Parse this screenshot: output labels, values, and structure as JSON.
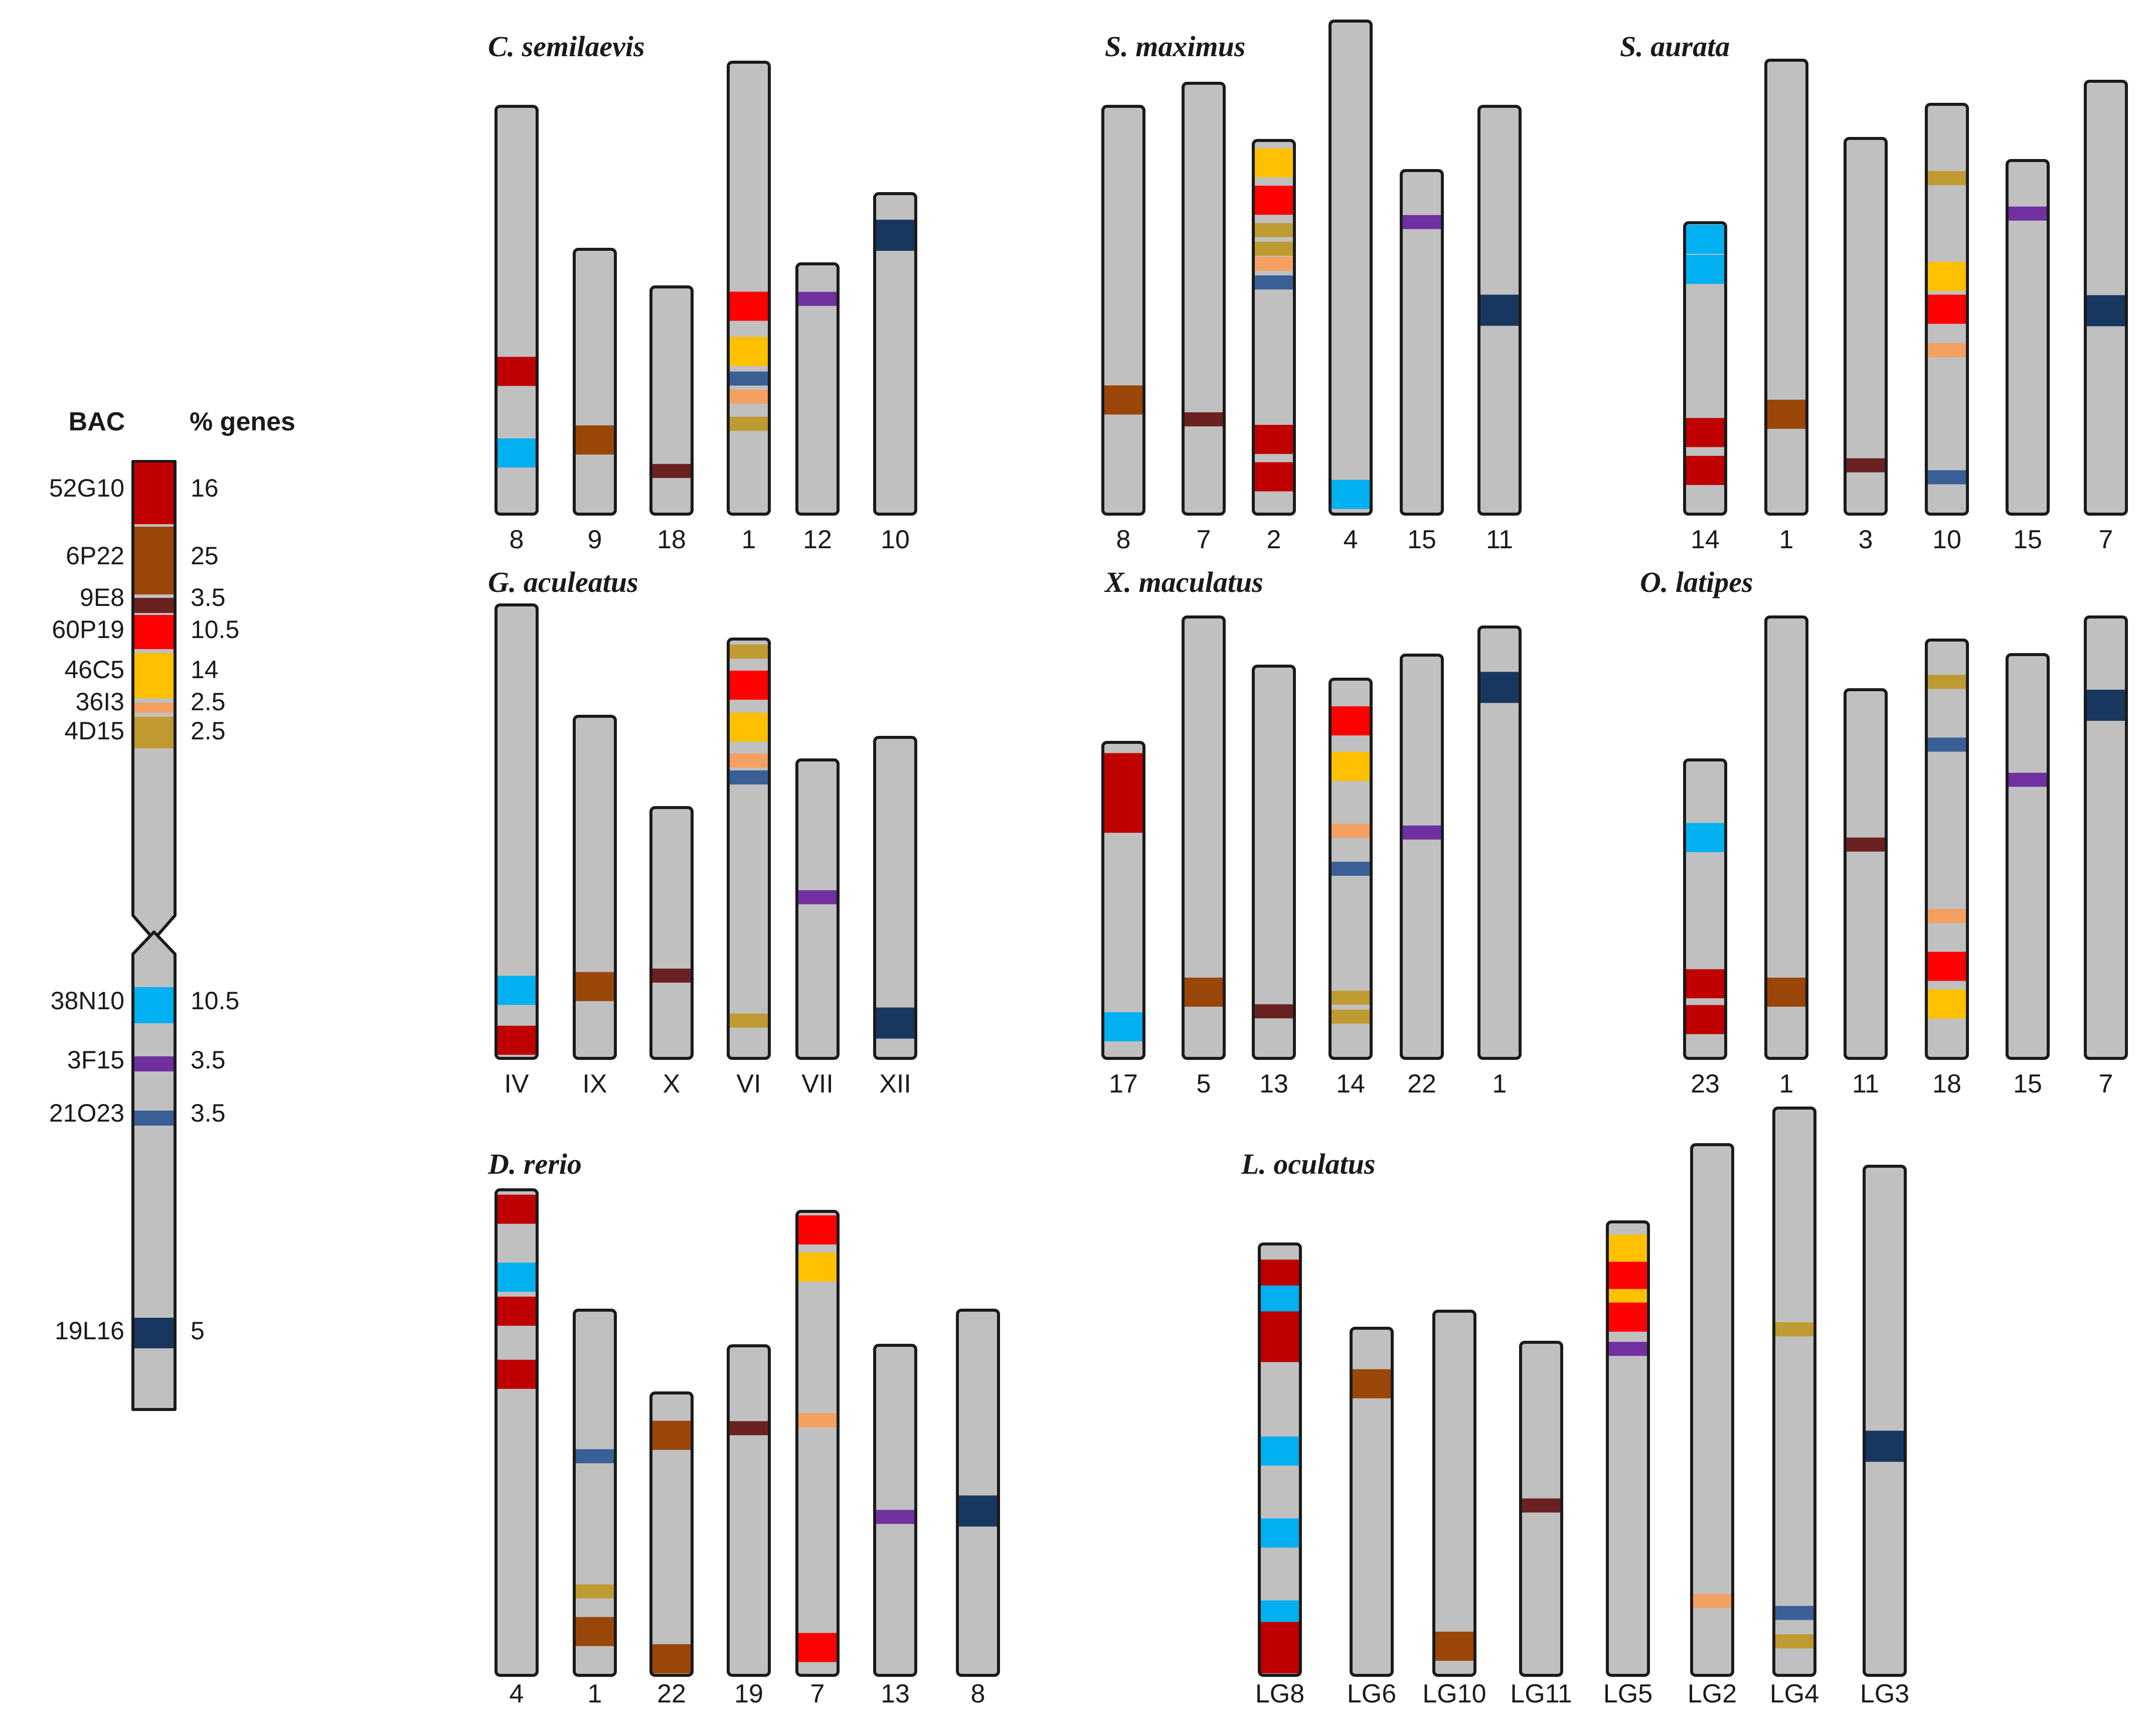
{
  "colors": {
    "chromosome_fill": "#c0c0c0",
    "chromosome_stroke": "#1a1a1a",
    "52G10": "#c00000",
    "6P22": "#9a4609",
    "9E8": "#6b2121",
    "60P19": "#ff0000",
    "46C5": "#ffc000",
    "36I3": "#f4a060",
    "4D15": "#bf9a30",
    "38N10": "#00b0f0",
    "3F15": "#7030a0",
    "21O23": "#3a5f96",
    "19L16": "#17375e"
  },
  "legend": {
    "col_bac": "BAC",
    "col_genes": "% genes",
    "items": [
      {
        "bac": "52G10",
        "genes": "16",
        "color": "#c00000"
      },
      {
        "bac": "6P22",
        "genes": "25",
        "color": "#9a4609"
      },
      {
        "bac": "9E8",
        "genes": "3.5",
        "color": "#6b2121"
      },
      {
        "bac": "60P19",
        "genes": "10.5",
        "color": "#ff0000"
      },
      {
        "bac": "46C5",
        "genes": "14",
        "color": "#ffc000"
      },
      {
        "bac": "36I3",
        "genes": "2.5",
        "color": "#f4a060"
      },
      {
        "bac": "4D15",
        "genes": "2.5",
        "color": "#bf9a30"
      },
      {
        "bac": "38N10",
        "genes": "10.5",
        "color": "#00b0f0"
      },
      {
        "bac": "3F15",
        "genes": "3.5",
        "color": "#7030a0"
      },
      {
        "bac": "21O23",
        "genes": "3.5",
        "color": "#3a5f96"
      },
      {
        "bac": "19L16",
        "genes": "5",
        "color": "#17375e"
      }
    ]
  },
  "species": [
    {
      "name": "C. semilaevis",
      "chromosomes": [
        {
          "label": "8",
          "bands": [
            {
              "bac": "52G10",
              "pos": 0.65
            },
            {
              "bac": "38N10",
              "pos": 0.85
            }
          ]
        },
        {
          "label": "9",
          "bands": [
            {
              "bac": "6P22",
              "pos": 0.72
            }
          ]
        },
        {
          "label": "18",
          "bands": [
            {
              "bac": "9E8",
              "pos": 0.81
            }
          ]
        },
        {
          "label": "1",
          "bands": [
            {
              "bac": "60P19",
              "pos": 0.54
            },
            {
              "bac": "46C5",
              "pos": 0.64
            },
            {
              "bac": "21O23",
              "pos": 0.7
            },
            {
              "bac": "36I3",
              "pos": 0.74
            },
            {
              "bac": "4D15",
              "pos": 0.8
            }
          ]
        },
        {
          "label": "12",
          "bands": [
            {
              "bac": "3F15",
              "pos": 0.14
            }
          ]
        },
        {
          "label": "10",
          "bands": [
            {
              "bac": "19L16",
              "pos": 0.13
            }
          ]
        }
      ]
    },
    {
      "name": "S. maximus",
      "chromosomes": [
        {
          "label": "8",
          "bands": [
            {
              "bac": "6P22",
              "pos": 0.72
            }
          ]
        },
        {
          "label": "7",
          "bands": [
            {
              "bac": "9E8",
              "pos": 0.78
            }
          ]
        },
        {
          "label": "2",
          "bands": [
            {
              "bac": "46C5",
              "pos": 0.06
            },
            {
              "bac": "60P19",
              "pos": 0.16
            },
            {
              "bac": "4D15",
              "pos": 0.24
            },
            {
              "bac": "4D15",
              "pos": 0.29
            },
            {
              "bac": "36I3",
              "pos": 0.33
            },
            {
              "bac": "21O23",
              "pos": 0.38
            },
            {
              "bac": "52G10",
              "pos": 0.8
            },
            {
              "bac": "52G10",
              "pos": 0.9
            }
          ]
        },
        {
          "label": "4",
          "bands": [
            {
              "bac": "38N10",
              "pos": 0.96
            }
          ]
        },
        {
          "label": "15",
          "bands": [
            {
              "bac": "3F15",
              "pos": 0.15
            }
          ]
        },
        {
          "label": "11",
          "bands": [
            {
              "bac": "19L16",
              "pos": 0.5
            }
          ]
        }
      ]
    },
    {
      "name": "S. aurata",
      "chromosomes": [
        {
          "label": "14",
          "bands": [
            {
              "bac": "38N10",
              "pos": 0.03
            },
            {
              "bac": "38N10",
              "pos": 0.16
            },
            {
              "bac": "52G10",
              "pos": 0.72
            },
            {
              "bac": "52G10",
              "pos": 0.85
            }
          ]
        },
        {
          "label": "1",
          "bands": [
            {
              "bac": "6P22",
              "pos": 0.78
            }
          ]
        },
        {
          "label": "3",
          "bands": [
            {
              "bac": "9E8",
              "pos": 0.87
            }
          ]
        },
        {
          "label": "10",
          "bands": [
            {
              "bac": "4D15",
              "pos": 0.18
            },
            {
              "bac": "46C5",
              "pos": 0.42
            },
            {
              "bac": "60P19",
              "pos": 0.5
            },
            {
              "bac": "36I3",
              "pos": 0.6
            },
            {
              "bac": "21O23",
              "pos": 0.91
            }
          ]
        },
        {
          "label": "15",
          "bands": [
            {
              "bac": "3F15",
              "pos": 0.15
            }
          ]
        },
        {
          "label": "7",
          "bands": [
            {
              "bac": "19L16",
              "pos": 0.53
            }
          ]
        }
      ]
    },
    {
      "name": "G. aculeatus",
      "chromosomes": [
        {
          "label": "IV",
          "bands": [
            {
              "bac": "38N10",
              "pos": 0.85
            },
            {
              "bac": "52G10",
              "pos": 0.96
            }
          ]
        },
        {
          "label": "IX",
          "bands": [
            {
              "bac": "6P22",
              "pos": 0.79
            }
          ]
        },
        {
          "label": "X",
          "bands": [
            {
              "bac": "9E8",
              "pos": 0.67
            }
          ]
        },
        {
          "label": "VI",
          "bands": [
            {
              "bac": "4D15",
              "pos": 0.03
            },
            {
              "bac": "60P19",
              "pos": 0.11
            },
            {
              "bac": "46C5",
              "pos": 0.21
            },
            {
              "bac": "36I3",
              "pos": 0.29
            },
            {
              "bac": "21O23",
              "pos": 0.33
            },
            {
              "bac": "4D15",
              "pos": 0.91
            }
          ]
        },
        {
          "label": "VII",
          "bands": [
            {
              "bac": "3F15",
              "pos": 0.46
            }
          ]
        },
        {
          "label": "XII",
          "bands": [
            {
              "bac": "19L16",
              "pos": 0.89
            }
          ]
        }
      ]
    },
    {
      "name": "X. maculatus",
      "chromosomes": [
        {
          "label": "17",
          "bands": [
            {
              "bac": "52G10",
              "pos": 0.08
            },
            {
              "bac": "52G10",
              "pos": 0.14
            },
            {
              "bac": "52G10",
              "pos": 0.19
            },
            {
              "bac": "52G10",
              "pos": 0.24
            },
            {
              "bac": "38N10",
              "pos": 0.9
            }
          ]
        },
        {
          "label": "5",
          "bands": [
            {
              "bac": "6P22",
              "pos": 0.85
            }
          ]
        },
        {
          "label": "13",
          "bands": [
            {
              "bac": "9E8",
              "pos": 0.88
            }
          ]
        },
        {
          "label": "14",
          "bands": [
            {
              "bac": "60P19",
              "pos": 0.11
            },
            {
              "bac": "46C5",
              "pos": 0.23
            },
            {
              "bac": "36I3",
              "pos": 0.4
            },
            {
              "bac": "21O23",
              "pos": 0.5
            },
            {
              "bac": "4D15",
              "pos": 0.84
            },
            {
              "bac": "4D15",
              "pos": 0.89
            }
          ]
        },
        {
          "label": "22",
          "bands": [
            {
              "bac": "3F15",
              "pos": 0.44
            }
          ]
        },
        {
          "label": "1",
          "bands": [
            {
              "bac": "19L16",
              "pos": 0.14
            }
          ]
        }
      ]
    },
    {
      "name": "O. latipes",
      "chromosomes": [
        {
          "label": "23",
          "bands": [
            {
              "bac": "38N10",
              "pos": 0.26
            },
            {
              "bac": "52G10",
              "pos": 0.75
            },
            {
              "bac": "52G10",
              "pos": 0.87
            }
          ]
        },
        {
          "label": "1",
          "bands": [
            {
              "bac": "6P22",
              "pos": 0.85
            }
          ]
        },
        {
          "label": "11",
          "bands": [
            {
              "bac": "9E8",
              "pos": 0.42
            }
          ]
        },
        {
          "label": "18",
          "bands": [
            {
              "bac": "4D15",
              "pos": 0.1
            },
            {
              "bac": "21O23",
              "pos": 0.25
            },
            {
              "bac": "36I3",
              "pos": 0.66
            },
            {
              "bac": "60P19",
              "pos": 0.78
            },
            {
              "bac": "46C5",
              "pos": 0.87
            }
          ]
        },
        {
          "label": "15",
          "bands": [
            {
              "bac": "3F15",
              "pos": 0.31
            }
          ]
        },
        {
          "label": "7",
          "bands": [
            {
              "bac": "19L16",
              "pos": 0.2
            }
          ]
        }
      ]
    },
    {
      "name": "D. rerio",
      "chromosomes": [
        {
          "label": "4",
          "bands": [
            {
              "bac": "52G10",
              "pos": 0.04
            },
            {
              "bac": "38N10",
              "pos": 0.18
            },
            {
              "bac": "52G10",
              "pos": 0.25
            },
            {
              "bac": "52G10",
              "pos": 0.38
            }
          ]
        },
        {
          "label": "1",
          "bands": [
            {
              "bac": "21O23",
              "pos": 0.4
            },
            {
              "bac": "4D15",
              "pos": 0.77
            },
            {
              "bac": "6P22",
              "pos": 0.88
            }
          ]
        },
        {
          "label": "22",
          "bands": [
            {
              "bac": "6P22",
              "pos": 0.15
            },
            {
              "bac": "6P22",
              "pos": 0.95
            }
          ]
        },
        {
          "label": "19",
          "bands": [
            {
              "bac": "9E8",
              "pos": 0.25
            }
          ]
        },
        {
          "label": "7",
          "bands": [
            {
              "bac": "60P19",
              "pos": 0.04
            },
            {
              "bac": "46C5",
              "pos": 0.12
            },
            {
              "bac": "36I3",
              "pos": 0.45
            },
            {
              "bac": "60P19",
              "pos": 0.94
            }
          ]
        },
        {
          "label": "13",
          "bands": [
            {
              "bac": "3F15",
              "pos": 0.52
            }
          ]
        },
        {
          "label": "8",
          "bands": [
            {
              "bac": "19L16",
              "pos": 0.55
            }
          ]
        }
      ]
    },
    {
      "name": "L. oculatus",
      "chromosomes": [
        {
          "label": "LG8",
          "bands": [
            {
              "bac": "52G10",
              "pos": 0.07
            },
            {
              "bac": "38N10",
              "pos": 0.13
            },
            {
              "bac": "52G10",
              "pos": 0.19
            },
            {
              "bac": "52G10",
              "pos": 0.24
            },
            {
              "bac": "38N10",
              "pos": 0.48
            },
            {
              "bac": "38N10",
              "pos": 0.67
            },
            {
              "bac": "38N10",
              "pos": 0.86
            },
            {
              "bac": "52G10",
              "pos": 0.91
            },
            {
              "bac": "52G10",
              "pos": 0.97
            }
          ]
        },
        {
          "label": "LG6",
          "bands": [
            {
              "bac": "6P22",
              "pos": 0.16
            }
          ]
        },
        {
          "label": "LG10",
          "bands": [
            {
              "bac": "6P22",
              "pos": 0.92
            }
          ]
        },
        {
          "label": "LG11",
          "bands": [
            {
              "bac": "9E8",
              "pos": 0.49
            }
          ]
        },
        {
          "label": "LG5",
          "bands": [
            {
              "bac": "46C5",
              "pos": 0.06
            },
            {
              "bac": "60P19",
              "pos": 0.12
            },
            {
              "bac": "46C5",
              "pos": 0.18
            },
            {
              "bac": "60P19",
              "pos": 0.21
            },
            {
              "bac": "3F15",
              "pos": 0.28
            }
          ]
        },
        {
          "label": "LG2",
          "bands": [
            {
              "bac": "36I3",
              "pos": 0.86
            }
          ]
        },
        {
          "label": "LG4",
          "bands": [
            {
              "bac": "4D15",
              "pos": 0.39
            },
            {
              "bac": "21O23",
              "pos": 0.89
            },
            {
              "bac": "4D15",
              "pos": 0.94
            }
          ]
        },
        {
          "label": "LG3",
          "bands": [
            {
              "bac": "19L16",
              "pos": 0.55
            }
          ]
        }
      ]
    }
  ]
}
